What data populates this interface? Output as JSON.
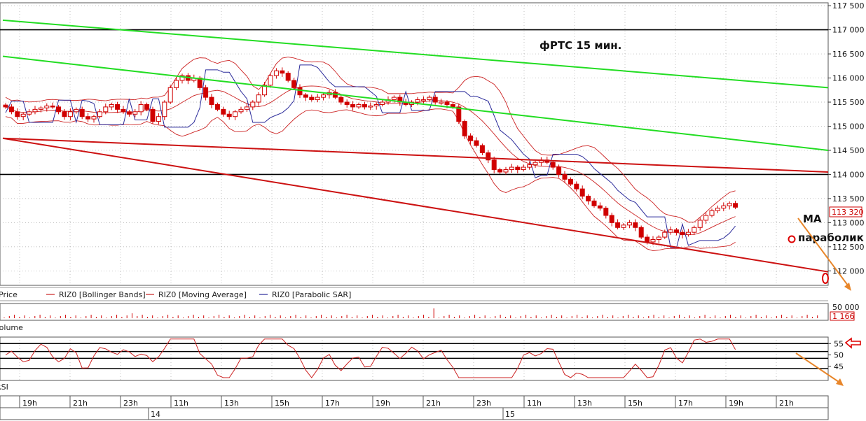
{
  "chart_data": {
    "type": "candlestick",
    "title": "фРТС   15 мин.",
    "instrument": "RIZ0",
    "price_axis": {
      "ylim": [
        111700,
        117560
      ],
      "ticks": [
        "117 500",
        "117 000",
        "116 500",
        "116 000",
        "115 500",
        "115 000",
        "114 500",
        "114 000",
        "113 500",
        "113 000",
        "112 500",
        "112 000"
      ],
      "tick_values": [
        117500,
        117000,
        116500,
        116000,
        115500,
        115000,
        114500,
        114000,
        113500,
        113000,
        112500,
        112000
      ],
      "last_price_label": "113 320",
      "last_price": 113320
    },
    "legend": [
      {
        "label": "Price",
        "color": "#d00000"
      },
      {
        "label": "RIZ0 [Bollinger Bands]",
        "color": "#cc2222"
      },
      {
        "label": "RIZ0 [Moving Average]",
        "color": "#cc2222"
      },
      {
        "label": "RIZ0 [Parabolic SAR]",
        "color": "#2a2a9a"
      }
    ],
    "horizontal_levels": [
      117000,
      114000
    ],
    "trendlines": [
      {
        "color": "#22dd22",
        "from": [
          0,
          117200
        ],
        "to": [
          166,
          115800
        ]
      },
      {
        "color": "#22dd22",
        "from": [
          0,
          116450
        ],
        "to": [
          166,
          114500
        ]
      },
      {
        "color": "#cc1111",
        "from": [
          0,
          114750
        ],
        "to": [
          166,
          114050
        ]
      },
      {
        "color": "#cc1111",
        "from": [
          0,
          114750
        ],
        "to": [
          166,
          111980
        ]
      }
    ],
    "candles_close": [
      115400,
      115300,
      115200,
      115250,
      115300,
      115350,
      115380,
      115420,
      115400,
      115300,
      115200,
      115300,
      115350,
      115200,
      115150,
      115200,
      115300,
      115400,
      115450,
      115350,
      115300,
      115250,
      115300,
      115450,
      115350,
      115100,
      115200,
      115500,
      115800,
      115950,
      116050,
      115950,
      116000,
      115800,
      115600,
      115450,
      115350,
      115250,
      115200,
      115300,
      115350,
      115400,
      115500,
      115650,
      115850,
      116050,
      116150,
      116100,
      115950,
      115800,
      115650,
      115600,
      115550,
      115600,
      115650,
      115700,
      115600,
      115500,
      115450,
      115400,
      115450,
      115400,
      115420,
      115450,
      115500,
      115550,
      115600,
      115500,
      115450,
      115500,
      115550,
      115550,
      115600,
      115500,
      115500,
      115450,
      115400,
      115100,
      114800,
      114700,
      114600,
      114450,
      114300,
      114100,
      114050,
      114100,
      114150,
      114100,
      114150,
      114200,
      114250,
      114300,
      114250,
      114150,
      114000,
      113900,
      113800,
      113700,
      113550,
      113450,
      113350,
      113300,
      113150,
      113000,
      112900,
      112950,
      113000,
      112900,
      112700,
      112600,
      112650,
      112700,
      112800,
      112850,
      112800,
      112750,
      112800,
      112900,
      113050,
      113150,
      113250,
      113300,
      113350,
      113400,
      113320
    ],
    "volume": {
      "label": "Volume",
      "ticks": [
        "50 000"
      ],
      "last_value_label": "1 166"
    },
    "rsi": {
      "label": "RSI",
      "ticks": [
        "55",
        "50",
        "45"
      ],
      "levels": [
        55,
        50,
        45
      ],
      "marker_level": 55
    },
    "time_axis": {
      "hours": [
        "19h",
        "21h",
        "23h",
        "11h",
        "13h",
        "15h",
        "17h",
        "19h",
        "21h",
        "23h",
        "11h",
        "13h",
        "15h",
        "17h",
        "19h",
        "21h"
      ],
      "days": [
        "14",
        "15"
      ]
    },
    "annotations": [
      "MA",
      "параболик"
    ]
  }
}
